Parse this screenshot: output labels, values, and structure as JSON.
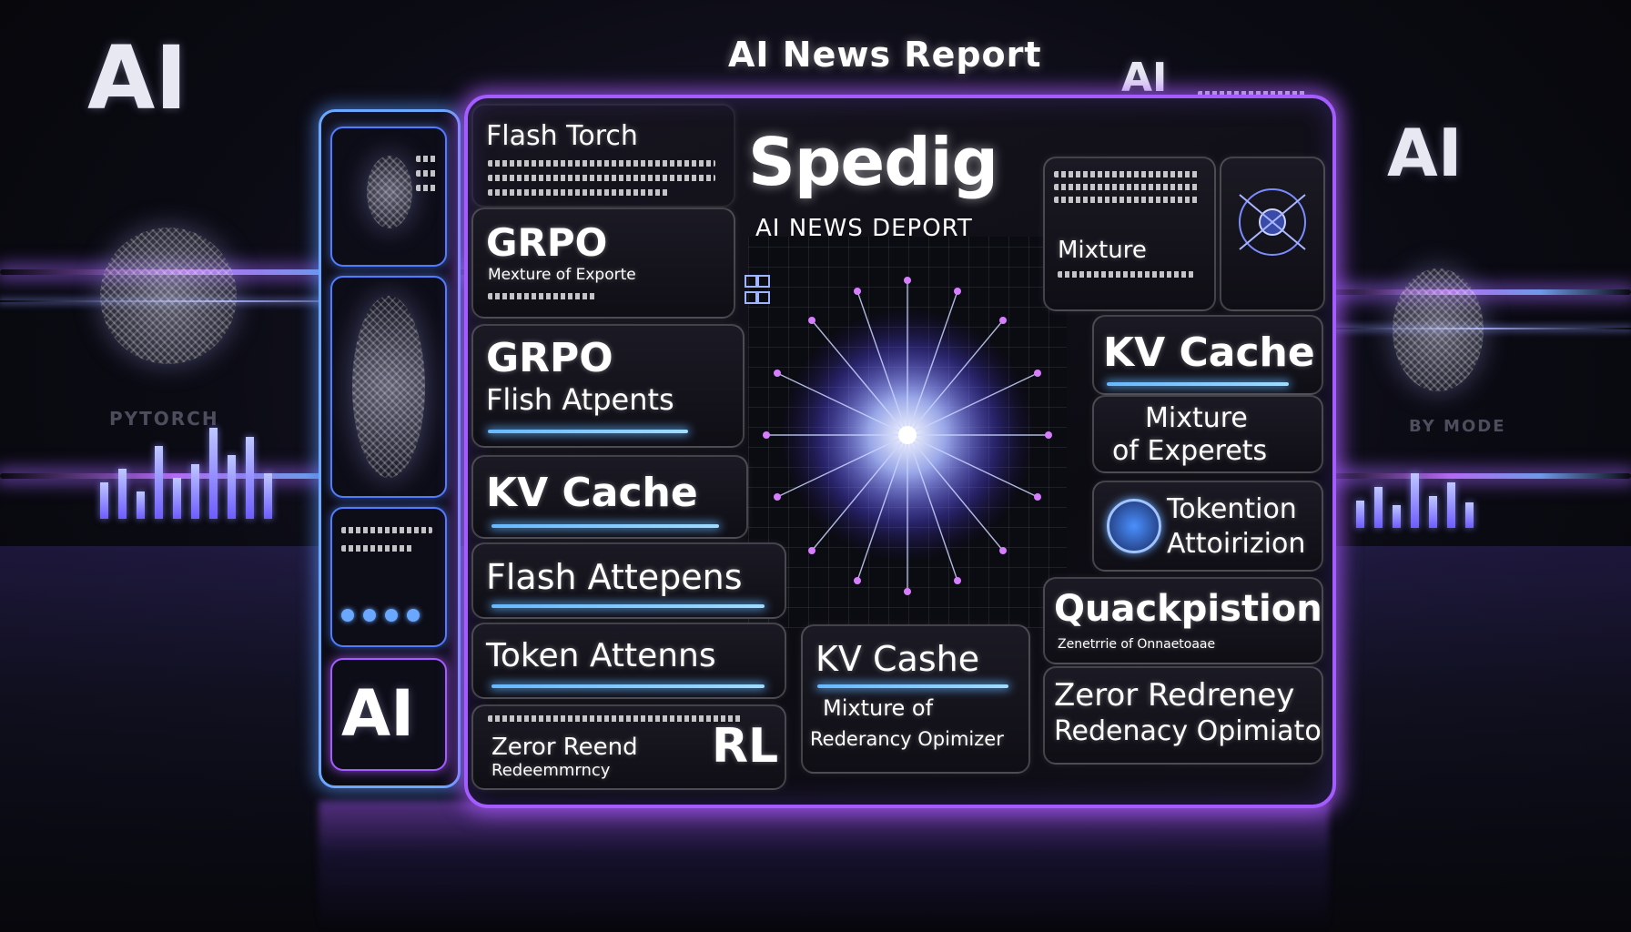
{
  "header": {
    "title": "AI News Report",
    "title_badge": "AI"
  },
  "background": {
    "left_ai": "AI",
    "right_ai": "AI",
    "left_faded_label": "PYTORCH",
    "right_faded_label": "BY MODE"
  },
  "board": {
    "headline": "Spedig",
    "subheadline": "AI NEWS DEPORT"
  },
  "tiles": {
    "flash_torch": "Flash Torch",
    "grpo_1": "GRPO",
    "grpo_1_sub": "Mexture of Exporte",
    "grpo_2": "GRPO",
    "grpo_2_sub": "Flish Atpents",
    "kv_cache_left": "KV Cache",
    "flash_attepens": "Flash Attepens",
    "token_attenns": "Token Attenns",
    "zeror_reend": "Zeror Reend",
    "zeror_reend_sub": "Redeemmrncy",
    "rl": "RL",
    "kv_cashe": "KV Cashe",
    "kv_cashe_sub1": "Mixture of",
    "kv_cashe_sub2": "Rederancy Opimizer",
    "mixture_top": "Mixture",
    "kv_cache_right": "KV Cache",
    "mixture_experts_1": "Mixture",
    "mixture_experts_2": "of Experets",
    "tokention_1": "Tokention",
    "tokention_2": "Attoirizion",
    "quackpistion": "Quackpistion",
    "quackpistion_sub": "Zenetrrie of Onnaetoaae",
    "zeror_redreney_1": "Zeror Redreney",
    "zeror_redreney_2": "Redenacy Opimiaton"
  },
  "side": {
    "bottom_ai": "AI"
  },
  "colors": {
    "neon_purple": "#a45cff",
    "neon_blue": "#67b8ff",
    "burst": "#8aa6ff"
  }
}
